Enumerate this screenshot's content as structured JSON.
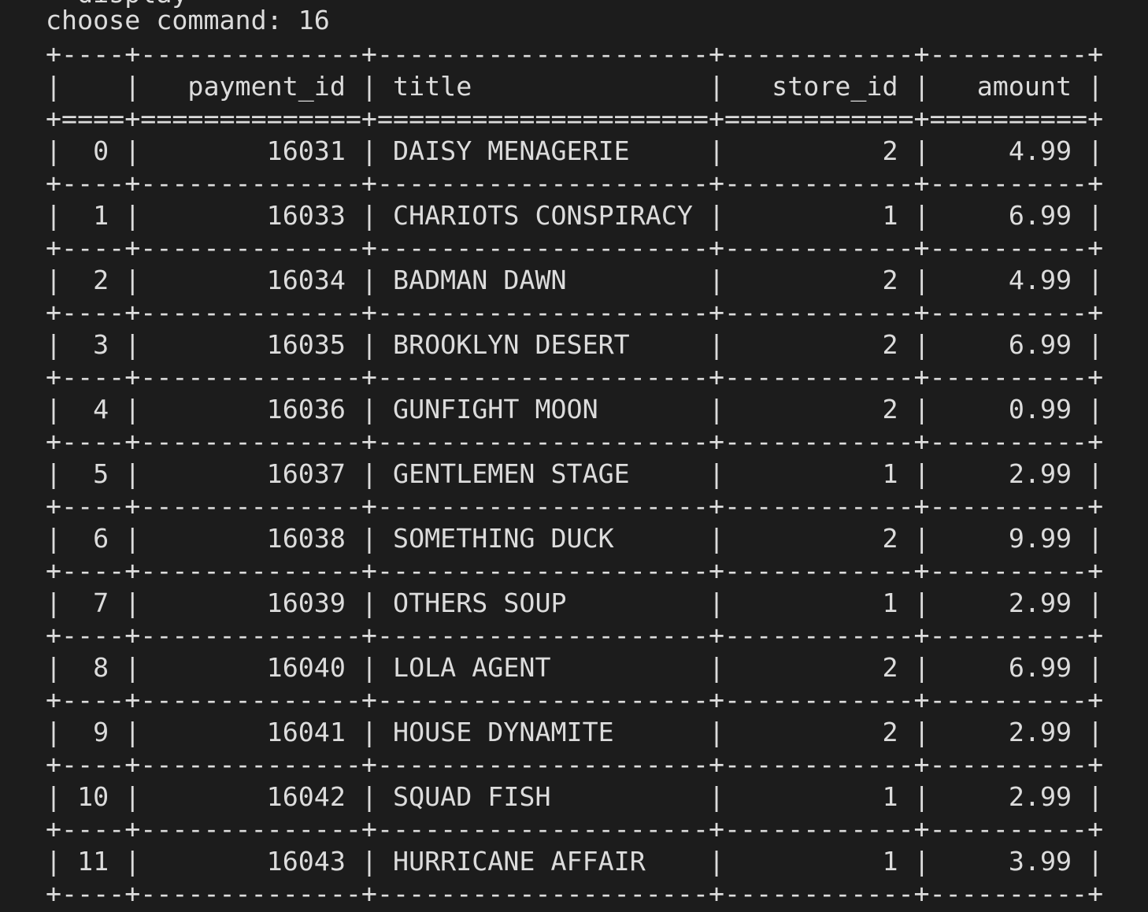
{
  "terminal": {
    "previous_line_partial": "  display",
    "prompt_label": "choose command:",
    "prompt_value": "16"
  },
  "table": {
    "columns": [
      "",
      "payment_id",
      "title",
      "store_id",
      "amount"
    ],
    "rows": [
      {
        "index": "0",
        "payment_id": "16031",
        "title": "DAISY MENAGERIE",
        "store_id": "2",
        "amount": "4.99"
      },
      {
        "index": "1",
        "payment_id": "16033",
        "title": "CHARIOTS CONSPIRACY",
        "store_id": "1",
        "amount": "6.99"
      },
      {
        "index": "2",
        "payment_id": "16034",
        "title": "BADMAN DAWN",
        "store_id": "2",
        "amount": "4.99"
      },
      {
        "index": "3",
        "payment_id": "16035",
        "title": "BROOKLYN DESERT",
        "store_id": "2",
        "amount": "6.99"
      },
      {
        "index": "4",
        "payment_id": "16036",
        "title": "GUNFIGHT MOON",
        "store_id": "2",
        "amount": "0.99"
      },
      {
        "index": "5",
        "payment_id": "16037",
        "title": "GENTLEMEN STAGE",
        "store_id": "1",
        "amount": "2.99"
      },
      {
        "index": "6",
        "payment_id": "16038",
        "title": "SOMETHING DUCK",
        "store_id": "2",
        "amount": "9.99"
      },
      {
        "index": "7",
        "payment_id": "16039",
        "title": "OTHERS SOUP",
        "store_id": "1",
        "amount": "2.99"
      },
      {
        "index": "8",
        "payment_id": "16040",
        "title": "LOLA AGENT",
        "store_id": "2",
        "amount": "6.99"
      },
      {
        "index": "9",
        "payment_id": "16041",
        "title": "HOUSE DYNAMITE",
        "store_id": "2",
        "amount": "2.99"
      },
      {
        "index": "10",
        "payment_id": "16042",
        "title": "SQUAD FISH",
        "store_id": "1",
        "amount": "2.99"
      },
      {
        "index": "11",
        "payment_id": "16043",
        "title": "HURRICANE AFFAIR",
        "store_id": "1",
        "amount": "3.99"
      }
    ]
  },
  "colors": {
    "background": "#1c1c1c",
    "text": "#dcdcdc"
  }
}
